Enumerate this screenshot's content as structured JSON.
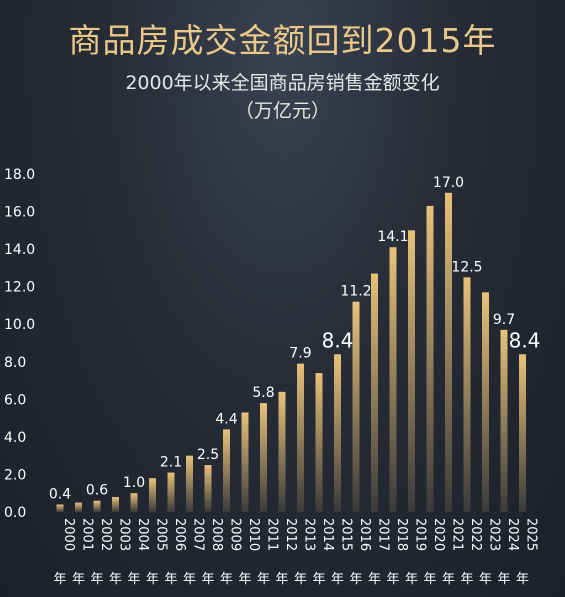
{
  "header": {
    "title": "商品房成交金额回到2015年",
    "subtitle": "2000年以来全国商品房销售金额变化",
    "unit": "（万亿元）"
  },
  "chart_data": {
    "type": "bar",
    "title": "商品房成交金额回到2015年",
    "subtitle": "2000年以来全国商品房销售金额变化",
    "ylabel": "（万亿元）",
    "ylim": [
      0,
      18
    ],
    "yticks": [
      "0.0",
      "2.0",
      "4.0",
      "6.0",
      "8.0",
      "10.0",
      "12.0",
      "14.0",
      "16.0",
      "18.0"
    ],
    "categories": [
      "2000",
      "2001",
      "2002",
      "2003",
      "2004",
      "2005",
      "2006",
      "2007",
      "2008",
      "2009",
      "2010",
      "2011",
      "2012",
      "2013",
      "2014",
      "2015",
      "2016",
      "2017",
      "2018",
      "2019",
      "2020",
      "2021",
      "2022",
      "2023",
      "2024",
      "2025"
    ],
    "category_suffix": "年",
    "values": [
      0.4,
      0.5,
      0.6,
      0.8,
      1.0,
      1.8,
      2.1,
      3.0,
      2.5,
      4.4,
      5.3,
      5.8,
      6.4,
      7.9,
      7.4,
      8.4,
      11.2,
      12.7,
      14.1,
      15.0,
      16.3,
      17.0,
      12.5,
      11.7,
      9.7,
      8.4
    ],
    "data_labels": [
      {
        "index": 0,
        "text": "0.4"
      },
      {
        "index": 2,
        "text": "0.6"
      },
      {
        "index": 4,
        "text": "1.0"
      },
      {
        "index": 6,
        "text": "2.1"
      },
      {
        "index": 8,
        "text": "2.5"
      },
      {
        "index": 9,
        "text": "4.4"
      },
      {
        "index": 11,
        "text": "5.8"
      },
      {
        "index": 13,
        "text": "7.9"
      },
      {
        "index": 15,
        "text": "8.4"
      },
      {
        "index": 16,
        "text": "11.2"
      },
      {
        "index": 18,
        "text": "14.1"
      },
      {
        "index": 21,
        "text": "17.0"
      },
      {
        "index": 22,
        "text": "12.5"
      },
      {
        "index": 24,
        "text": "9.7"
      },
      {
        "index": 25,
        "text": "8.4"
      }
    ],
    "emphasized_labels": [
      15,
      25
    ],
    "grid": false,
    "colors": {
      "bar_top": "#e8c27a",
      "bar_bottom": "#3a3a3a",
      "axis_text": "#ffffff",
      "title": "#e8c98a"
    }
  }
}
